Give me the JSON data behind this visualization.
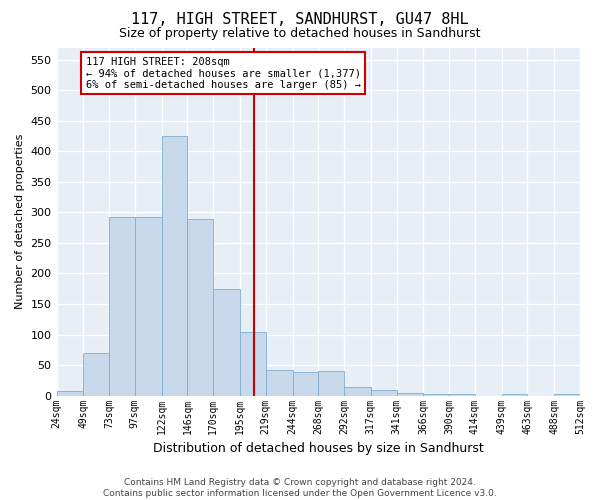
{
  "title": "117, HIGH STREET, SANDHURST, GU47 8HL",
  "subtitle": "Size of property relative to detached houses in Sandhurst",
  "xlabel": "Distribution of detached houses by size in Sandhurst",
  "ylabel": "Number of detached properties",
  "bar_color": "#c9d9ec",
  "bar_edge_color": "#7eadd4",
  "background_color": "#e8eef5",
  "grid_color": "#ffffff",
  "ref_line_x": 208,
  "ref_line_color": "#cc0000",
  "annotation_line1": "117 HIGH STREET: 208sqm",
  "annotation_line2": "← 94% of detached houses are smaller (1,377)",
  "annotation_line3": "6% of semi-detached houses are larger (85) →",
  "annotation_box_color": "#cc0000",
  "footer_text": "Contains HM Land Registry data © Crown copyright and database right 2024.\nContains public sector information licensed under the Open Government Licence v3.0.",
  "bin_edges": [
    24,
    49,
    73,
    97,
    122,
    146,
    170,
    195,
    219,
    244,
    268,
    292,
    317,
    341,
    366,
    390,
    414,
    439,
    463,
    488,
    512
  ],
  "bar_heights": [
    8,
    70,
    292,
    292,
    425,
    290,
    175,
    105,
    42,
    38,
    40,
    14,
    10,
    5,
    2,
    2,
    0,
    3,
    0,
    2
  ],
  "yticks": [
    0,
    50,
    100,
    150,
    200,
    250,
    300,
    350,
    400,
    450,
    500,
    550
  ],
  "ylim": [
    0,
    570
  ],
  "tick_labels": [
    "24sqm",
    "49sqm",
    "73sqm",
    "97sqm",
    "122sqm",
    "146sqm",
    "170sqm",
    "195sqm",
    "219sqm",
    "244sqm",
    "268sqm",
    "292sqm",
    "317sqm",
    "341sqm",
    "366sqm",
    "390sqm",
    "414sqm",
    "439sqm",
    "463sqm",
    "488sqm",
    "512sqm"
  ],
  "title_fontsize": 11,
  "subtitle_fontsize": 9,
  "ylabel_fontsize": 8,
  "xlabel_fontsize": 9
}
